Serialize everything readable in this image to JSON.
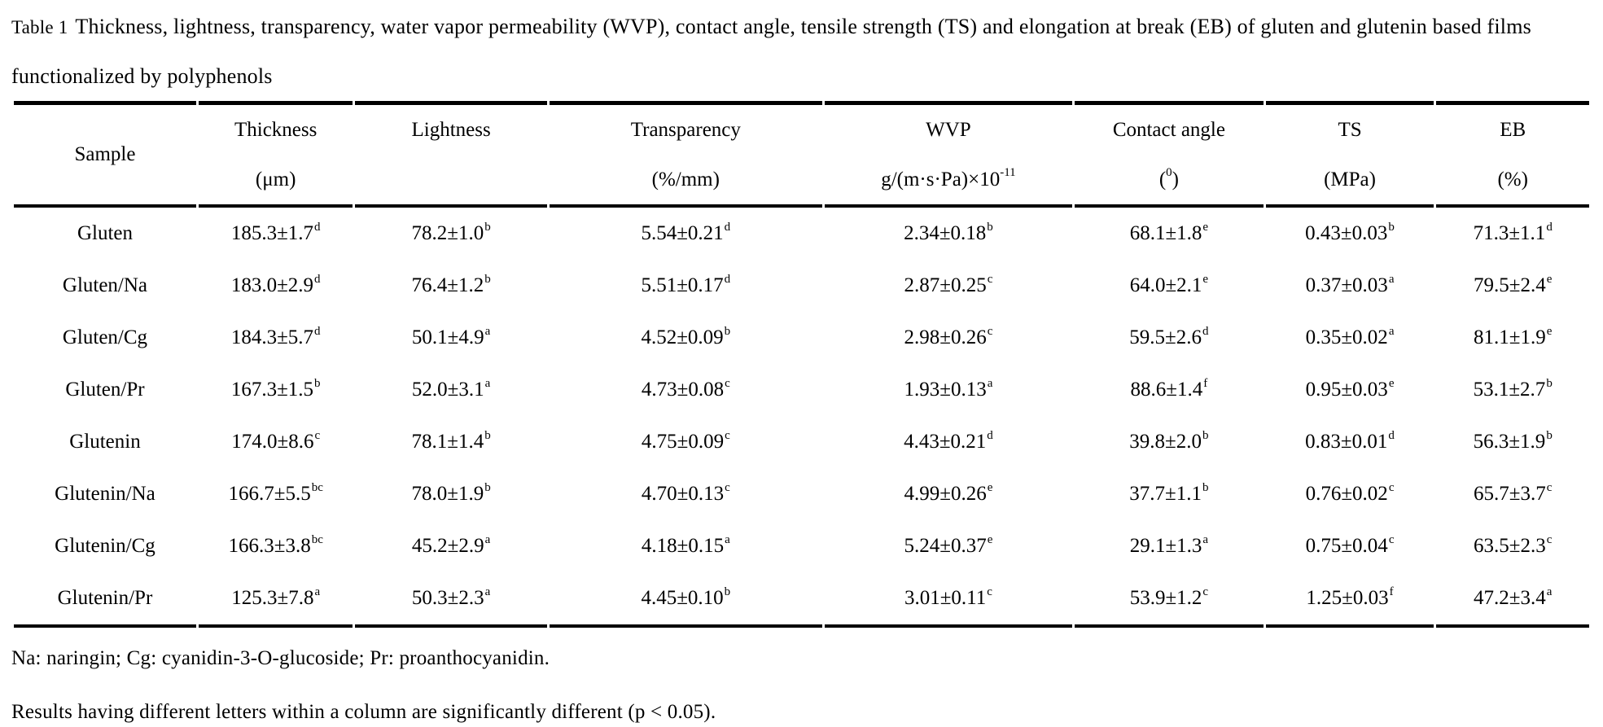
{
  "caption": {
    "label": "Table 1",
    "text": "Thickness, lightness, transparency, water vapor permeability (WVP), contact angle, tensile strength (TS) and elongation at break (EB) of gluten and glutenin based films functionalized by polyphenols"
  },
  "colors": {
    "text": "#000000",
    "background": "#ffffff",
    "rule": "#000000"
  },
  "table": {
    "sample_header": "Sample",
    "columns": [
      {
        "label": "Thickness",
        "unit": "(μm)",
        "unit_sup": "",
        "unit_tail": ""
      },
      {
        "label": "Lightness",
        "unit": "",
        "unit_sup": "",
        "unit_tail": ""
      },
      {
        "label": "Transparency",
        "unit": "(%/mm)",
        "unit_sup": "",
        "unit_tail": ""
      },
      {
        "label": "WVP",
        "unit": "g/(m·s·Pa)×10",
        "unit_sup": "-11",
        "unit_tail": ""
      },
      {
        "label": "Contact angle",
        "unit": "(",
        "unit_sup": "0",
        "unit_tail": ")"
      },
      {
        "label": "TS",
        "unit": "(MPa)",
        "unit_sup": "",
        "unit_tail": ""
      },
      {
        "label": "EB",
        "unit": "(%)",
        "unit_sup": "",
        "unit_tail": ""
      }
    ],
    "rows": [
      {
        "sample": "Gluten",
        "values": [
          {
            "v": "185.3±1.7",
            "sup": "d"
          },
          {
            "v": "78.2±1.0",
            "sup": "b"
          },
          {
            "v": "5.54±0.21",
            "sup": "d"
          },
          {
            "v": "2.34±0.18",
            "sup": "b"
          },
          {
            "v": "68.1±1.8",
            "sup": "e"
          },
          {
            "v": "0.43±0.03",
            "sup": "b"
          },
          {
            "v": "71.3±1.1",
            "sup": "d"
          }
        ]
      },
      {
        "sample": "Gluten/Na",
        "values": [
          {
            "v": "183.0±2.9",
            "sup": "d"
          },
          {
            "v": "76.4±1.2",
            "sup": "b"
          },
          {
            "v": "5.51±0.17",
            "sup": "d"
          },
          {
            "v": "2.87±0.25",
            "sup": "c"
          },
          {
            "v": "64.0±2.1",
            "sup": "e"
          },
          {
            "v": "0.37±0.03",
            "sup": "a"
          },
          {
            "v": "79.5±2.4",
            "sup": "e"
          }
        ]
      },
      {
        "sample": "Gluten/Cg",
        "values": [
          {
            "v": "184.3±5.7",
            "sup": "d"
          },
          {
            "v": "50.1±4.9",
            "sup": "a"
          },
          {
            "v": "4.52±0.09",
            "sup": "b"
          },
          {
            "v": "2.98±0.26",
            "sup": "c"
          },
          {
            "v": "59.5±2.6",
            "sup": "d"
          },
          {
            "v": "0.35±0.02",
            "sup": "a"
          },
          {
            "v": "81.1±1.9",
            "sup": "e"
          }
        ]
      },
      {
        "sample": "Gluten/Pr",
        "values": [
          {
            "v": "167.3±1.5",
            "sup": "b"
          },
          {
            "v": "52.0±3.1",
            "sup": "a"
          },
          {
            "v": "4.73±0.08",
            "sup": "c"
          },
          {
            "v": "1.93±0.13",
            "sup": "a"
          },
          {
            "v": "88.6±1.4",
            "sup": "f"
          },
          {
            "v": "0.95±0.03",
            "sup": "e"
          },
          {
            "v": "53.1±2.7",
            "sup": "b"
          }
        ]
      },
      {
        "sample": "Glutenin",
        "values": [
          {
            "v": "174.0±8.6",
            "sup": "c"
          },
          {
            "v": "78.1±1.4",
            "sup": "b"
          },
          {
            "v": "4.75±0.09",
            "sup": "c"
          },
          {
            "v": "4.43±0.21",
            "sup": "d"
          },
          {
            "v": "39.8±2.0",
            "sup": "b"
          },
          {
            "v": "0.83±0.01",
            "sup": "d"
          },
          {
            "v": "56.3±1.9",
            "sup": "b"
          }
        ]
      },
      {
        "sample": "Glutenin/Na",
        "values": [
          {
            "v": "166.7±5.5",
            "sup": "bc"
          },
          {
            "v": "78.0±1.9",
            "sup": "b"
          },
          {
            "v": "4.70±0.13",
            "sup": "c"
          },
          {
            "v": "4.99±0.26",
            "sup": "e"
          },
          {
            "v": "37.7±1.1",
            "sup": "b"
          },
          {
            "v": "0.76±0.02",
            "sup": "c"
          },
          {
            "v": "65.7±3.7",
            "sup": "c"
          }
        ]
      },
      {
        "sample": "Glutenin/Cg",
        "values": [
          {
            "v": "166.3±3.8",
            "sup": "bc"
          },
          {
            "v": "45.2±2.9",
            "sup": "a"
          },
          {
            "v": "4.18±0.15",
            "sup": "a"
          },
          {
            "v": "5.24±0.37",
            "sup": "e"
          },
          {
            "v": "29.1±1.3",
            "sup": "a"
          },
          {
            "v": "0.75±0.04",
            "sup": "c"
          },
          {
            "v": "63.5±2.3",
            "sup": "c"
          }
        ]
      },
      {
        "sample": "Glutenin/Pr",
        "values": [
          {
            "v": "125.3±7.8",
            "sup": "a"
          },
          {
            "v": "50.3±2.3",
            "sup": "a"
          },
          {
            "v": "4.45±0.10",
            "sup": "b"
          },
          {
            "v": "3.01±0.11",
            "sup": "c"
          },
          {
            "v": "53.9±1.2",
            "sup": "c"
          },
          {
            "v": "1.25±0.03",
            "sup": "f"
          },
          {
            "v": "47.2±3.4",
            "sup": "a"
          }
        ]
      }
    ]
  },
  "footnotes": [
    "Na: naringin; Cg: cyanidin-3-O-glucoside; Pr: proanthocyanidin.",
    "Results having different letters within a column are significantly different (p < 0.05)."
  ]
}
